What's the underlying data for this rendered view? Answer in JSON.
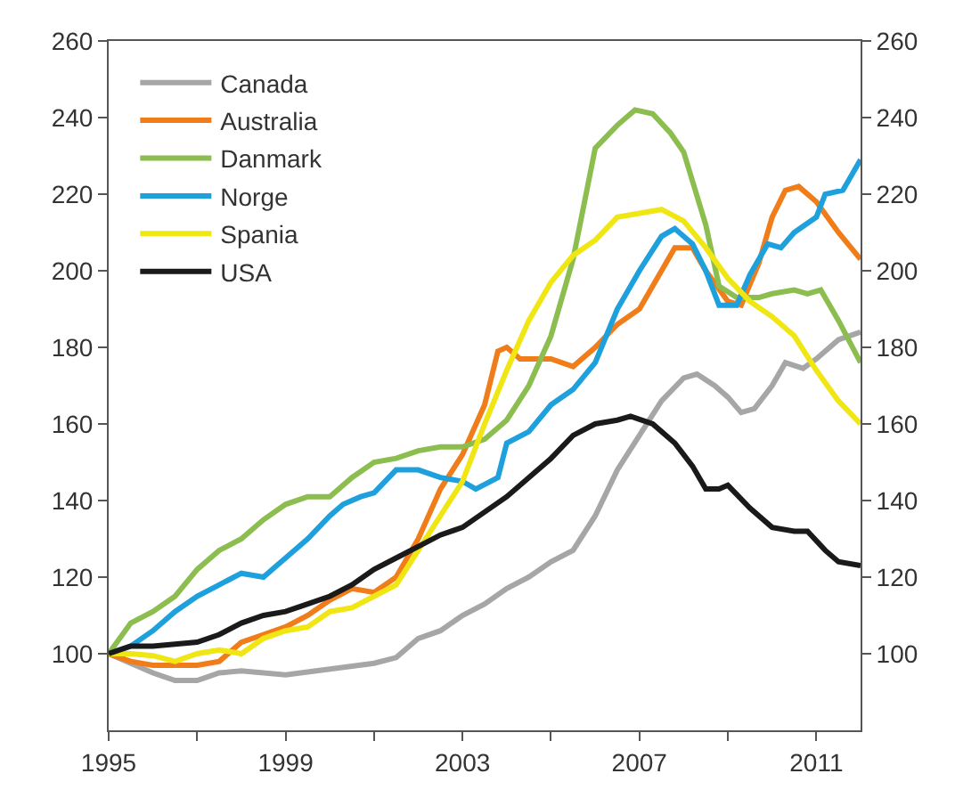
{
  "chart_data": {
    "type": "line",
    "xlim": [
      1995,
      2012
    ],
    "xticks": [
      1995,
      {
        "value": 1997,
        "label": null
      },
      1999,
      {
        "value": 2001,
        "label": null
      },
      2003,
      {
        "value": 2005,
        "label": null
      },
      2007,
      {
        "value": 2009,
        "label": null
      },
      2011
    ],
    "ylim": [
      80,
      260
    ],
    "yticks": [
      100,
      120,
      140,
      160,
      180,
      200,
      220,
      240,
      260
    ],
    "y2lim": [
      80,
      260
    ],
    "y2ticks": [
      100,
      120,
      140,
      160,
      180,
      200,
      220,
      240,
      260
    ],
    "legend": "top left",
    "line_style": "solid",
    "series": [
      {
        "name": "Canada",
        "color": "#a6a6a6",
        "x": [
          1995,
          1996,
          1996.5,
          1997,
          1997.5,
          1998,
          1999,
          2000,
          2001,
          2001.5,
          2002,
          2002.5,
          2003,
          2003.5,
          2004,
          2004.5,
          2005,
          2005.5,
          2006,
          2006.5,
          2007,
          2007.5,
          2008,
          2008.3,
          2008.7,
          2009,
          2009.3,
          2009.6,
          2010,
          2010.3,
          2010.7,
          2011,
          2011.5,
          2012
        ],
        "values": [
          100,
          95,
          93,
          93,
          95,
          95.5,
          94.5,
          96,
          97.5,
          99,
          104,
          106,
          110,
          113,
          117,
          120,
          124,
          127,
          136,
          148,
          157,
          166,
          172,
          173,
          170,
          167,
          163,
          164,
          170,
          176,
          174.5,
          177,
          182,
          184
        ]
      },
      {
        "name": "Australia",
        "color": "#f07d1a",
        "x": [
          1995,
          1995.5,
          1996,
          1997,
          1997.5,
          1998,
          1998.5,
          1999,
          1999.5,
          2000,
          2000.5,
          2001,
          2001.5,
          2002,
          2002.5,
          2003,
          2003.5,
          2003.8,
          2004,
          2004.3,
          2005,
          2005.5,
          2006,
          2006.5,
          2007,
          2007.5,
          2007.8,
          2008.2,
          2008.5,
          2009,
          2009.3,
          2009.7,
          2010,
          2010.3,
          2010.6,
          2011,
          2011.5,
          2012
        ],
        "values": [
          100,
          98,
          97,
          97,
          98,
          103,
          105,
          107,
          110,
          114,
          117,
          116,
          120,
          130,
          143,
          152,
          165,
          179,
          180,
          177,
          177,
          175,
          180,
          186,
          190,
          200,
          206,
          206,
          200,
          192,
          191,
          202,
          214,
          221,
          222,
          218,
          210,
          203
        ]
      },
      {
        "name": "Danmark",
        "color": "#8cbd4f",
        "x": [
          1995,
          1995.5,
          1996,
          1996.5,
          1997,
          1997.5,
          1998,
          1998.5,
          1999,
          1999.5,
          2000,
          2000.5,
          2001,
          2001.5,
          2002,
          2002.5,
          2003,
          2003.5,
          2004,
          2004.5,
          2005,
          2005.5,
          2006,
          2006.5,
          2006.9,
          2007.3,
          2007.7,
          2008,
          2008.5,
          2008.8,
          2009.2,
          2009.7,
          2010,
          2010.5,
          2010.8,
          2011.1,
          2011.5,
          2012
        ],
        "values": [
          100,
          108,
          111,
          115,
          122,
          127,
          130,
          135,
          139,
          141,
          141,
          146,
          150,
          151,
          153,
          154,
          154,
          156,
          161,
          170,
          183,
          203,
          232,
          238,
          242,
          241,
          236,
          231,
          212,
          196,
          193,
          193,
          194,
          195,
          194,
          195,
          187,
          176
        ]
      },
      {
        "name": "Norge",
        "color": "#1ea0dc",
        "x": [
          1995,
          1995.5,
          1996,
          1996.5,
          1997,
          1997.5,
          1998,
          1998.5,
          1998.8,
          1999,
          1999.5,
          2000,
          2000.3,
          2000.7,
          2001,
          2001.5,
          2002,
          2002.5,
          2003,
          2003.3,
          2003.8,
          2004,
          2004.5,
          2005,
          2005.5,
          2006,
          2006.5,
          2007,
          2007.5,
          2007.8,
          2008.2,
          2008.5,
          2008.8,
          2009.2,
          2009.5,
          2009.9,
          2010.2,
          2010.5,
          2011,
          2011.2,
          2011.6,
          2012
        ],
        "values": [
          100,
          102,
          106,
          111,
          115,
          118,
          121,
          120,
          123,
          125,
          130,
          136,
          139,
          141,
          142,
          148,
          148,
          146,
          145,
          143,
          146,
          155,
          158,
          165,
          169,
          176,
          190,
          200,
          209,
          211,
          207,
          200,
          191,
          191,
          199,
          207,
          206,
          210,
          214,
          220,
          221,
          229
        ]
      },
      {
        "name": "Spania",
        "color": "#f0e614",
        "x": [
          1995,
          1995.5,
          1996,
          1996.5,
          1997,
          1997.5,
          1998,
          1998.5,
          1999,
          1999.5,
          2000,
          2000.5,
          2001,
          2001.5,
          2002,
          2002.5,
          2003,
          2003.5,
          2004,
          2004.5,
          2005,
          2005.5,
          2006,
          2006.5,
          2007,
          2007.5,
          2008,
          2008.5,
          2009,
          2009.5,
          2010,
          2010.5,
          2011,
          2011.5,
          2012
        ],
        "values": [
          100,
          100,
          99.5,
          98,
          100,
          101,
          100,
          104,
          106,
          107,
          111,
          112,
          115,
          118,
          127,
          136,
          145,
          160,
          174,
          187,
          197,
          204,
          208,
          214,
          215,
          216,
          213,
          206,
          198,
          192,
          188,
          183,
          174,
          166,
          160
        ]
      },
      {
        "name": "USA",
        "color": "#1a1a1a",
        "x": [
          1995,
          1995.5,
          1996,
          1996.5,
          1997,
          1997.5,
          1998,
          1998.5,
          1999,
          1999.5,
          2000,
          2000.5,
          2001,
          2001.5,
          2002,
          2002.5,
          2003,
          2003.5,
          2004,
          2004.5,
          2005,
          2005.5,
          2006,
          2006.5,
          2006.8,
          2007.3,
          2007.8,
          2008.2,
          2008.5,
          2008.8,
          2009,
          2009.5,
          2010,
          2010.5,
          2010.8,
          2011.2,
          2011.5,
          2012
        ],
        "values": [
          100,
          102,
          102,
          102.5,
          103,
          105,
          108,
          110,
          111,
          113,
          115,
          118,
          122,
          125,
          128,
          131,
          133,
          137,
          141,
          146,
          151,
          157,
          160,
          161,
          162,
          160,
          155,
          149,
          143,
          143,
          144,
          138,
          133,
          132,
          132,
          127,
          124,
          123
        ]
      }
    ]
  }
}
